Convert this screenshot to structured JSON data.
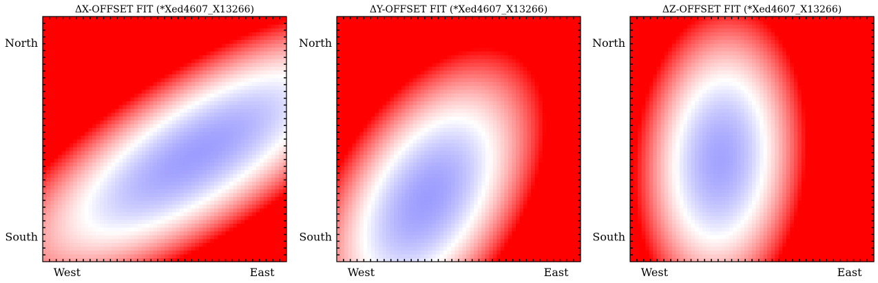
{
  "colors": {
    "high": "#ff0000",
    "mid": "#ffffff",
    "low": "#0000ff",
    "frame": "#000000"
  },
  "chart_data": [
    {
      "type": "heatmap",
      "title": "ΔX-OFFSET FIT (*Xed4607_X13266)",
      "xlabel": "",
      "ylabel": "",
      "xticklabels": [
        "West",
        "East"
      ],
      "yticklabels": [
        "North",
        "South"
      ],
      "colormap": "bwr",
      "field": {
        "center": [
          0.63,
          0.44
        ],
        "angle_deg": 32,
        "axes": [
          0.52,
          0.18
        ],
        "max_level": 3.6
      }
    },
    {
      "type": "heatmap",
      "title": "ΔY-OFFSET FIT (*Xed4607_X13266)",
      "xlabel": "",
      "ylabel": "",
      "xticklabels": [
        "West",
        "East"
      ],
      "yticklabels": [
        "North",
        "South"
      ],
      "colormap": "bwr",
      "field": {
        "center": [
          0.37,
          0.26
        ],
        "angle_deg": 58,
        "axes": [
          0.36,
          0.2
        ],
        "max_level": 3.6
      }
    },
    {
      "type": "heatmap",
      "title": "ΔZ-OFFSET FIT (*Xed4607_X13266)",
      "xlabel": "",
      "ylabel": "",
      "xticklabels": [
        "West",
        "East"
      ],
      "yticklabels": [
        "North",
        "South"
      ],
      "colormap": "bwr",
      "field": {
        "center": [
          0.37,
          0.42
        ],
        "angle_deg": 85,
        "axes": [
          0.32,
          0.18
        ],
        "max_level": 3.8
      }
    }
  ]
}
